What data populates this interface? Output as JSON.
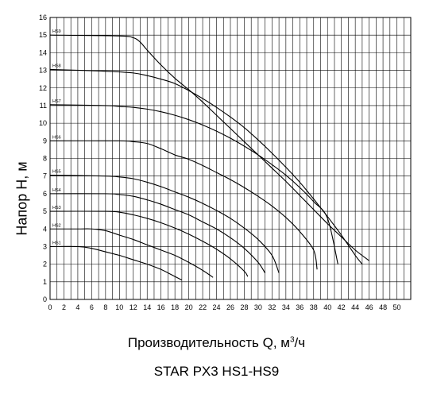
{
  "chart_data": {
    "type": "line",
    "title": "STAR PX3  HS1-HS9",
    "xlabel": "Производительность Q, м",
    "xlabel_sup": "3",
    "xlabel_unit": "/ч",
    "ylabel": "Напор H, м",
    "xlim": [
      0,
      52
    ],
    "ylim": [
      0,
      16
    ],
    "xticks": [
      0,
      2,
      4,
      6,
      8,
      10,
      12,
      14,
      16,
      18,
      20,
      22,
      24,
      26,
      28,
      30,
      32,
      34,
      36,
      38,
      40,
      42,
      44,
      46,
      48,
      50
    ],
    "yticks": [
      0,
      1,
      2,
      3,
      4,
      5,
      6,
      7,
      8,
      9,
      10,
      11,
      12,
      13,
      14,
      15,
      16
    ],
    "grid": true,
    "series": [
      {
        "name": "HS1",
        "points": [
          [
            0,
            3
          ],
          [
            4,
            3
          ],
          [
            6,
            2.9
          ],
          [
            8,
            2.7
          ],
          [
            10,
            2.5
          ],
          [
            12,
            2.25
          ],
          [
            14,
            2.0
          ],
          [
            16,
            1.7
          ],
          [
            18,
            1.3
          ],
          [
            19,
            1.1
          ]
        ]
      },
      {
        "name": "HS2",
        "points": [
          [
            0,
            4
          ],
          [
            4,
            4
          ],
          [
            6,
            4
          ],
          [
            8,
            3.9
          ],
          [
            10,
            3.65
          ],
          [
            12,
            3.4
          ],
          [
            14,
            3.1
          ],
          [
            16,
            2.8
          ],
          [
            18,
            2.5
          ],
          [
            20,
            2.1
          ],
          [
            22,
            1.65
          ],
          [
            23.5,
            1.25
          ]
        ]
      },
      {
        "name": "HS3",
        "points": [
          [
            0,
            5
          ],
          [
            8,
            5
          ],
          [
            10,
            4.95
          ],
          [
            12,
            4.8
          ],
          [
            14,
            4.6
          ],
          [
            16,
            4.35
          ],
          [
            18,
            4.05
          ],
          [
            20,
            3.7
          ],
          [
            22,
            3.3
          ],
          [
            24,
            2.85
          ],
          [
            26,
            2.3
          ],
          [
            28,
            1.6
          ],
          [
            28.5,
            1.3
          ]
        ]
      },
      {
        "name": "HS4",
        "points": [
          [
            0,
            6
          ],
          [
            8,
            6
          ],
          [
            10,
            5.95
          ],
          [
            12,
            5.85
          ],
          [
            14,
            5.65
          ],
          [
            16,
            5.4
          ],
          [
            18,
            5.1
          ],
          [
            20,
            4.8
          ],
          [
            22,
            4.4
          ],
          [
            24,
            4.0
          ],
          [
            26,
            3.5
          ],
          [
            28,
            2.9
          ],
          [
            30,
            2.1
          ],
          [
            31,
            1.5
          ]
        ]
      },
      {
        "name": "HS5",
        "points": [
          [
            0,
            7.05
          ],
          [
            8,
            7
          ],
          [
            10,
            6.95
          ],
          [
            12,
            6.85
          ],
          [
            14,
            6.65
          ],
          [
            16,
            6.4
          ],
          [
            18,
            6.1
          ],
          [
            20,
            5.8
          ],
          [
            22,
            5.45
          ],
          [
            24,
            5.05
          ],
          [
            26,
            4.6
          ],
          [
            28,
            4.05
          ],
          [
            30,
            3.4
          ],
          [
            32,
            2.5
          ],
          [
            33,
            1.5
          ]
        ]
      },
      {
        "name": "HS6",
        "points": [
          [
            0,
            9
          ],
          [
            10,
            9
          ],
          [
            12,
            8.95
          ],
          [
            14,
            8.85
          ],
          [
            16,
            8.55
          ],
          [
            18,
            8.2
          ],
          [
            20,
            7.95
          ],
          [
            22,
            7.6
          ],
          [
            24,
            7.2
          ],
          [
            26,
            6.8
          ],
          [
            28,
            6.35
          ],
          [
            30,
            5.85
          ],
          [
            32,
            5.3
          ],
          [
            34,
            4.65
          ],
          [
            36,
            3.85
          ],
          [
            38,
            2.8
          ],
          [
            38.5,
            1.7
          ]
        ]
      },
      {
        "name": "HS7",
        "points": [
          [
            0,
            11.05
          ],
          [
            8,
            11
          ],
          [
            10,
            10.95
          ],
          [
            12,
            10.9
          ],
          [
            14,
            10.8
          ],
          [
            16,
            10.65
          ],
          [
            18,
            10.45
          ],
          [
            20,
            10.2
          ],
          [
            22,
            9.9
          ],
          [
            24,
            9.55
          ],
          [
            26,
            9.15
          ],
          [
            28,
            8.7
          ],
          [
            30,
            8.2
          ],
          [
            32,
            7.65
          ],
          [
            34,
            7.05
          ],
          [
            36,
            6.35
          ],
          [
            38,
            5.55
          ],
          [
            40,
            4.6
          ],
          [
            41.5,
            2.0
          ]
        ]
      },
      {
        "name": "HS8",
        "points": [
          [
            0,
            13.05
          ],
          [
            8,
            12.95
          ],
          [
            12,
            12.85
          ],
          [
            14,
            12.7
          ],
          [
            16,
            12.5
          ],
          [
            18,
            12.25
          ],
          [
            20,
            11.85
          ],
          [
            22,
            11.4
          ],
          [
            24,
            10.9
          ],
          [
            26,
            10.35
          ],
          [
            28,
            9.75
          ],
          [
            30,
            9.05
          ],
          [
            32,
            8.3
          ],
          [
            34,
            7.5
          ],
          [
            36,
            6.65
          ],
          [
            38,
            5.7
          ],
          [
            40,
            4.7
          ],
          [
            42,
            3.65
          ],
          [
            44,
            2.5
          ],
          [
            45,
            2.0
          ]
        ]
      },
      {
        "name": "HS9",
        "points": [
          [
            0,
            15
          ],
          [
            10,
            14.95
          ],
          [
            12,
            14.85
          ],
          [
            13,
            14.6
          ],
          [
            14,
            14.15
          ],
          [
            16,
            13.3
          ],
          [
            18,
            12.55
          ],
          [
            20,
            11.9
          ],
          [
            22,
            11.2
          ],
          [
            24,
            10.45
          ],
          [
            26,
            9.7
          ],
          [
            28,
            8.95
          ],
          [
            30,
            8.2
          ],
          [
            32,
            7.45
          ],
          [
            34,
            6.7
          ],
          [
            36,
            5.9
          ],
          [
            38,
            5.1
          ],
          [
            40,
            4.3
          ],
          [
            42,
            3.55
          ],
          [
            44,
            2.8
          ],
          [
            46,
            2.2
          ]
        ]
      }
    ]
  }
}
